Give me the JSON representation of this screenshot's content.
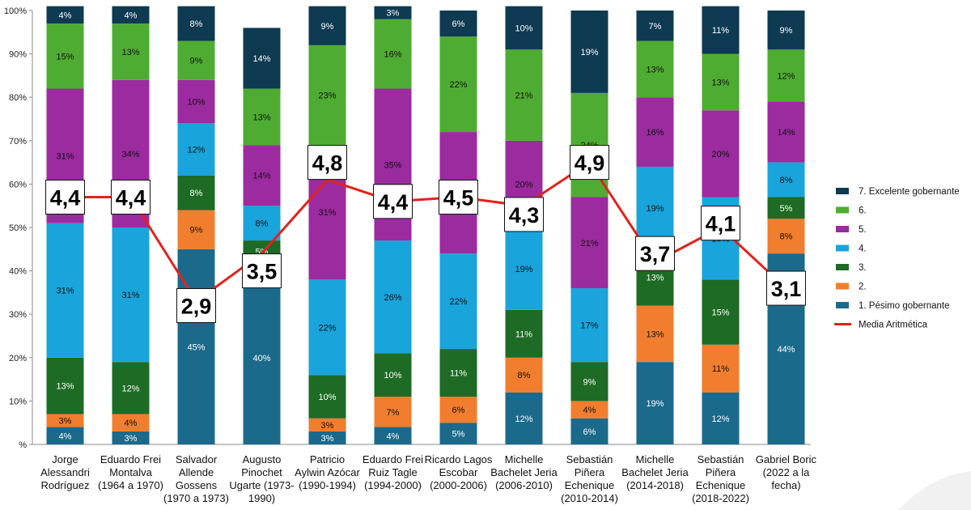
{
  "chart_data": {
    "type": "bar",
    "stacked": true,
    "title": "",
    "xlabel": "",
    "ylabel": "",
    "ylim": [
      0,
      100
    ],
    "y_ticks": [
      "%",
      "10%",
      "20%",
      "30%",
      "40%",
      "50%",
      "60%",
      "70%",
      "80%",
      "90%",
      "100%"
    ],
    "categories": [
      [
        "Jorge",
        "Alessandri",
        "Rodríguez"
      ],
      [
        "Eduardo Frei",
        "Montalva",
        "(1964 a 1970)"
      ],
      [
        "Salvador",
        "Allende",
        "Gossens",
        "(1970 a 1973)"
      ],
      [
        "Augusto",
        "Pinochet",
        "Ugarte (1973-",
        "1990)"
      ],
      [
        "Patricio",
        "Aylwin Azócar",
        "(1990-1994)"
      ],
      [
        "Eduardo Frei",
        "Ruiz Tagle",
        "(1994-2000)"
      ],
      [
        "Ricardo Lagos",
        "Escobar",
        "(2000-2006)"
      ],
      [
        "Michelle",
        "Bachelet Jeria",
        "(2006-2010)"
      ],
      [
        "Sebastián",
        "Piñera",
        "Echenique",
        "(2010-2014)"
      ],
      [
        "Michelle",
        "Bachelet Jeria",
        "(2014-2018)"
      ],
      [
        "Sebastián",
        "Piñera",
        "Echenique",
        "(2018-2022)"
      ],
      [
        "Gabriel Boric",
        "(2022 a la",
        "fecha)"
      ]
    ],
    "series": [
      {
        "name": "1. Pésimo gobernante",
        "color": "#1b6a8c",
        "label_color": "#ffffff",
        "values": [
          4,
          3,
          45,
          40,
          3,
          4,
          5,
          12,
          6,
          19,
          12,
          44
        ],
        "labels": [
          "4%",
          "3%",
          "45%",
          "40%",
          "3%",
          "4%",
          "5%",
          "12%",
          "6%",
          "19%",
          "12%",
          "44%"
        ]
      },
      {
        "name": "2.",
        "color": "#f07e2e",
        "label_color": "#111111",
        "values": [
          3,
          4,
          9,
          2,
          3,
          7,
          6,
          8,
          4,
          13,
          11,
          8
        ],
        "labels": [
          "3%",
          "4%",
          "9%",
          "",
          "3%",
          "7%",
          "6%",
          "8%",
          "4%",
          "13%",
          "11%",
          "8%"
        ]
      },
      {
        "name": "3.",
        "color": "#1e6b25",
        "label_color": "#ffffff",
        "values": [
          13,
          12,
          8,
          5,
          10,
          10,
          11,
          11,
          9,
          13,
          15,
          5
        ],
        "labels": [
          "13%",
          "12%",
          "8%",
          "5%",
          "10%",
          "10%",
          "11%",
          "11%",
          "9%",
          "13%",
          "15%",
          "5%"
        ]
      },
      {
        "name": "4.",
        "color": "#19a4db",
        "label_color": "#111111",
        "values": [
          31,
          31,
          12,
          8,
          22,
          26,
          22,
          19,
          17,
          19,
          19,
          8
        ],
        "labels": [
          "31%",
          "31%",
          "12%",
          "8%",
          "22%",
          "26%",
          "22%",
          "19%",
          "17%",
          "19%",
          "19%",
          "8%"
        ]
      },
      {
        "name": "5.",
        "color": "#9b2b9f",
        "label_color": "#111111",
        "values": [
          31,
          34,
          10,
          14,
          31,
          35,
          28,
          20,
          21,
          16,
          20,
          14
        ],
        "labels": [
          "31%",
          "34%",
          "10%",
          "14%",
          "31%",
          "35%",
          "",
          "20%",
          "21%",
          "16%",
          "20%",
          "14%"
        ]
      },
      {
        "name": "6.",
        "color": "#4fac32",
        "label_color": "#111111",
        "values": [
          15,
          13,
          9,
          13,
          23,
          16,
          22,
          21,
          24,
          13,
          13,
          12
        ],
        "labels": [
          "15%",
          "13%",
          "9%",
          "13%",
          "23%",
          "16%",
          "22%",
          "21%",
          "24%",
          "13%",
          "13%",
          "12%"
        ]
      },
      {
        "name": "7. Excelente gobernante",
        "color": "#0e3a52",
        "label_color": "#ffffff",
        "values": [
          4,
          4,
          8,
          14,
          9,
          3,
          6,
          10,
          19,
          7,
          11,
          9
        ],
        "labels": [
          "4%",
          "4%",
          "8%",
          "14%",
          "9%",
          "3%",
          "6%",
          "10%",
          "19%",
          "7%",
          "11%",
          "9%"
        ]
      }
    ],
    "mean_line": {
      "name": "Media Aritmética",
      "color": "#e4211c",
      "values": [
        4.4,
        4.4,
        2.9,
        3.5,
        4.8,
        4.4,
        4.5,
        4.3,
        4.9,
        3.7,
        4.1,
        3.1
      ],
      "labels": [
        "4,4",
        "4,4",
        "2,9",
        "3,5",
        "4,8",
        "4,4",
        "4,5",
        "4,3",
        "4,9",
        "3,7",
        "4,1",
        "3,1"
      ],
      "display_percent": [
        57,
        57,
        33,
        44,
        61,
        56,
        57,
        55,
        65,
        42,
        50,
        36
      ],
      "label_anchor_percent": [
        57,
        57,
        32,
        40,
        65,
        56,
        57,
        53,
        65,
        44,
        51,
        36
      ]
    },
    "legend": {
      "position": "right",
      "items": [
        "7. Excelente gobernante",
        "6.",
        "5.",
        "4.",
        "3.",
        "2.",
        "1. Pésimo gobernante",
        "Media Aritmética"
      ],
      "colors": [
        "#0e3a52",
        "#4fac32",
        "#9b2b9f",
        "#19a4db",
        "#1e6b25",
        "#f07e2e",
        "#1b6a8c",
        "#e4211c"
      ]
    },
    "grid": false
  }
}
